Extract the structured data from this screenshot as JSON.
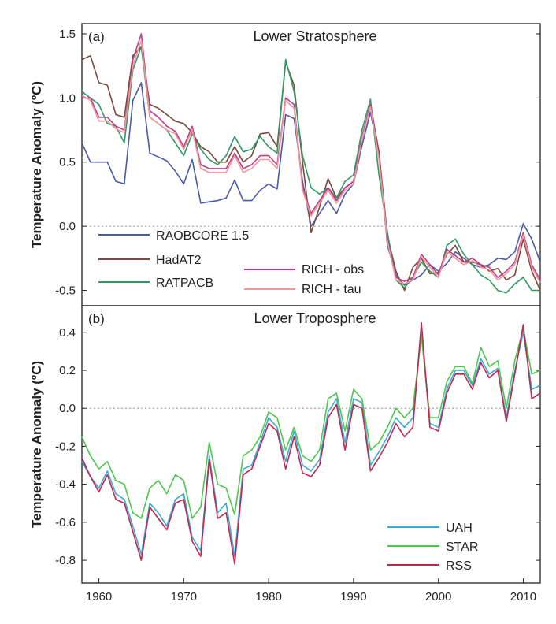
{
  "chart_data": [
    {
      "type": "line",
      "panel_label": "(a)",
      "title": "Lower Stratosphere",
      "ylabel": "Temperature Anomaly (ºC)",
      "xlim": [
        1958,
        2012
      ],
      "ylim": [
        -0.62,
        1.58
      ],
      "yticks": [
        1.5,
        1.0,
        0.5,
        0.0,
        -0.5
      ],
      "ytick_labels": [
        "1.5",
        "1.0",
        "0.5",
        "0.0",
        "-0.5"
      ],
      "x": [
        1958,
        1959,
        1960,
        1961,
        1962,
        1963,
        1964,
        1965,
        1966,
        1967,
        1968,
        1969,
        1970,
        1971,
        1972,
        1973,
        1974,
        1975,
        1976,
        1977,
        1978,
        1979,
        1980,
        1981,
        1982,
        1983,
        1984,
        1985,
        1986,
        1987,
        1988,
        1989,
        1990,
        1991,
        1992,
        1993,
        1994,
        1995,
        1996,
        1997,
        1998,
        1999,
        2000,
        2001,
        2002,
        2003,
        2004,
        2005,
        2006,
        2007,
        2008,
        2009,
        2010,
        2011,
        2012
      ],
      "series": [
        {
          "name": "RAOBCORE 1.5",
          "color": "#4a5aa8",
          "values": [
            0.65,
            0.5,
            0.5,
            0.5,
            0.35,
            0.33,
            0.98,
            1.12,
            0.57,
            0.54,
            0.51,
            0.43,
            0.33,
            0.52,
            0.18,
            0.19,
            0.2,
            0.22,
            0.36,
            0.2,
            0.2,
            0.28,
            0.33,
            0.29,
            0.87,
            0.84,
            0.35,
            0.0,
            0.1,
            0.2,
            0.1,
            0.25,
            0.33,
            0.63,
            0.89,
            0.55,
            -0.15,
            -0.38,
            -0.46,
            -0.42,
            -0.38,
            -0.3,
            -0.35,
            -0.29,
            -0.2,
            -0.25,
            -0.3,
            -0.32,
            -0.3,
            -0.25,
            -0.26,
            -0.2,
            0.02,
            -0.1,
            -0.28
          ]
        },
        {
          "name": "HadAT2",
          "color": "#7a4a3a",
          "values": [
            1.3,
            1.33,
            1.12,
            1.1,
            0.87,
            0.85,
            1.33,
            1.4,
            0.95,
            0.92,
            0.87,
            0.82,
            0.8,
            0.73,
            0.62,
            0.58,
            0.5,
            0.5,
            0.62,
            0.5,
            0.55,
            0.72,
            0.73,
            0.62,
            1.28,
            1.1,
            0.5,
            -0.05,
            0.15,
            0.37,
            0.22,
            0.3,
            0.35,
            0.68,
            0.95,
            0.58,
            -0.08,
            -0.35,
            -0.5,
            -0.32,
            -0.25,
            -0.37,
            -0.36,
            -0.22,
            -0.15,
            -0.28,
            -0.28,
            -0.3,
            -0.35,
            -0.33,
            -0.42,
            -0.38,
            -0.1,
            -0.35,
            -0.5
          ]
        },
        {
          "name": "RATPACB",
          "color": "#2e9a62",
          "values": [
            1.05,
            1.0,
            0.95,
            0.8,
            0.78,
            0.65,
            1.22,
            1.4,
            0.85,
            0.8,
            0.75,
            0.65,
            0.55,
            0.72,
            0.6,
            0.52,
            0.48,
            0.55,
            0.7,
            0.58,
            0.6,
            0.7,
            0.62,
            0.57,
            1.3,
            1.05,
            0.55,
            0.3,
            0.25,
            0.3,
            0.22,
            0.35,
            0.4,
            0.75,
            0.99,
            0.4,
            -0.05,
            -0.42,
            -0.48,
            -0.4,
            -0.28,
            -0.35,
            -0.4,
            -0.15,
            -0.1,
            -0.22,
            -0.3,
            -0.38,
            -0.42,
            -0.5,
            -0.52,
            -0.45,
            -0.4,
            -0.5,
            -0.5
          ]
        },
        {
          "name": "RICH - obs",
          "color": "#c03c90",
          "values": [
            1.0,
            1.0,
            0.85,
            0.85,
            0.78,
            0.75,
            1.3,
            1.5,
            0.9,
            0.85,
            0.78,
            0.74,
            0.62,
            0.78,
            0.48,
            0.45,
            0.45,
            0.45,
            0.57,
            0.45,
            0.48,
            0.55,
            0.55,
            0.48,
            1.0,
            0.95,
            0.3,
            0.1,
            0.2,
            0.3,
            0.2,
            0.3,
            0.35,
            0.7,
            0.95,
            0.55,
            -0.1,
            -0.4,
            -0.43,
            -0.4,
            -0.22,
            -0.3,
            -0.38,
            -0.18,
            -0.23,
            -0.28,
            -0.25,
            -0.3,
            -0.32,
            -0.4,
            -0.35,
            -0.28,
            -0.05,
            -0.3,
            -0.42
          ]
        },
        {
          "name": "RICH - tau",
          "color": "#f09898",
          "values": [
            1.02,
            0.98,
            0.82,
            0.82,
            0.76,
            0.73,
            1.25,
            1.45,
            0.85,
            0.8,
            0.75,
            0.72,
            0.6,
            0.75,
            0.45,
            0.42,
            0.42,
            0.42,
            0.55,
            0.42,
            0.45,
            0.52,
            0.52,
            0.45,
            0.98,
            0.92,
            0.28,
            0.08,
            0.18,
            0.28,
            0.18,
            0.28,
            0.33,
            0.68,
            0.93,
            0.52,
            -0.12,
            -0.42,
            -0.45,
            -0.42,
            -0.24,
            -0.32,
            -0.4,
            -0.2,
            -0.25,
            -0.3,
            -0.27,
            -0.32,
            -0.34,
            -0.42,
            -0.37,
            -0.3,
            -0.07,
            -0.32,
            -0.44
          ]
        }
      ],
      "legend": {
        "placement": "lower-left"
      }
    },
    {
      "type": "line",
      "panel_label": "(b)",
      "title": "Lower Troposphere",
      "ylabel": "Temperature Anomaly (ºC)",
      "xlim": [
        1958,
        2012
      ],
      "ylim": [
        -0.92,
        0.54
      ],
      "yticks": [
        0.4,
        0.2,
        0.0,
        -0.2,
        -0.4,
        -0.6,
        -0.8
      ],
      "ytick_labels": [
        "0.4",
        "0.2",
        "0.0",
        "-0.2",
        "-0.4",
        "-0.6",
        "-0.8"
      ],
      "xticks": [
        1960,
        1970,
        1980,
        1990,
        2000,
        2010
      ],
      "xtick_labels": [
        "1960",
        "1970",
        "1980",
        "1990",
        "2000",
        "2010"
      ],
      "x": [
        1958,
        1959,
        1960,
        1961,
        1962,
        1963,
        1964,
        1965,
        1966,
        1967,
        1968,
        1969,
        1970,
        1971,
        1972,
        1973,
        1974,
        1975,
        1976,
        1977,
        1978,
        1979,
        1980,
        1981,
        1982,
        1983,
        1984,
        1985,
        1986,
        1987,
        1988,
        1989,
        1990,
        1991,
        1992,
        1993,
        1994,
        1995,
        1996,
        1997,
        1998,
        1999,
        2000,
        2001,
        2002,
        2003,
        2004,
        2005,
        2006,
        2007,
        2008,
        2009,
        2010,
        2011,
        2012
      ],
      "series": [
        {
          "name": "UAH",
          "color": "#3aaad8",
          "values": [
            -0.28,
            -0.36,
            -0.42,
            -0.33,
            -0.45,
            -0.48,
            -0.62,
            -0.77,
            -0.5,
            -0.55,
            -0.62,
            -0.48,
            -0.45,
            -0.68,
            -0.75,
            -0.25,
            -0.55,
            -0.5,
            -0.78,
            -0.32,
            -0.3,
            -0.18,
            -0.05,
            -0.1,
            -0.28,
            -0.12,
            -0.3,
            -0.33,
            -0.27,
            -0.02,
            0.05,
            -0.18,
            0.05,
            0.03,
            -0.3,
            -0.23,
            -0.15,
            -0.05,
            -0.1,
            -0.05,
            0.4,
            -0.08,
            -0.1,
            0.1,
            0.2,
            0.2,
            0.12,
            0.26,
            0.18,
            0.21,
            -0.05,
            0.2,
            0.4,
            0.1,
            0.12
          ]
        },
        {
          "name": "STAR",
          "color": "#4cc84c",
          "values": [
            -0.15,
            -0.25,
            -0.32,
            -0.28,
            -0.38,
            -0.4,
            -0.55,
            -0.58,
            -0.42,
            -0.38,
            -0.45,
            -0.35,
            -0.38,
            -0.58,
            -0.52,
            -0.18,
            -0.4,
            -0.42,
            -0.56,
            -0.25,
            -0.22,
            -0.15,
            -0.02,
            -0.05,
            -0.22,
            -0.1,
            -0.25,
            -0.28,
            -0.22,
            0.05,
            0.08,
            -0.12,
            0.1,
            0.05,
            -0.22,
            -0.18,
            -0.1,
            0.0,
            -0.05,
            0.0,
            0.38,
            -0.05,
            -0.05,
            0.14,
            0.22,
            0.22,
            0.13,
            0.32,
            0.22,
            0.25,
            0.0,
            0.25,
            0.42,
            0.18,
            0.2
          ]
        },
        {
          "name": "RSS",
          "color": "#c02850",
          "values": [
            -0.26,
            -0.36,
            -0.44,
            -0.35,
            -0.48,
            -0.5,
            -0.65,
            -0.8,
            -0.52,
            -0.58,
            -0.64,
            -0.5,
            -0.48,
            -0.7,
            -0.78,
            -0.27,
            -0.58,
            -0.55,
            -0.82,
            -0.35,
            -0.32,
            -0.2,
            -0.08,
            -0.12,
            -0.32,
            -0.15,
            -0.34,
            -0.36,
            -0.3,
            -0.05,
            0.02,
            -0.22,
            0.02,
            0.0,
            -0.33,
            -0.26,
            -0.18,
            -0.08,
            -0.15,
            -0.1,
            0.45,
            -0.1,
            -0.12,
            0.08,
            0.18,
            0.18,
            0.1,
            0.24,
            0.16,
            0.2,
            -0.07,
            0.18,
            0.44,
            0.05,
            0.08
          ]
        }
      ],
      "legend": {
        "placement": "lower-right"
      }
    }
  ]
}
